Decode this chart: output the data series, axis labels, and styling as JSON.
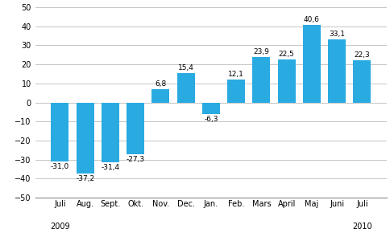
{
  "categories": [
    "Juli",
    "Aug.",
    "Sept.",
    "Okt.",
    "Nov.",
    "Dec.",
    "Jan.",
    "Feb.",
    "Mars",
    "April",
    "Maj",
    "Juni",
    "Juli"
  ],
  "values": [
    -31.0,
    -37.2,
    -31.4,
    -27.3,
    6.8,
    15.4,
    -6.3,
    12.1,
    23.9,
    22.5,
    40.6,
    33.1,
    22.3
  ],
  "bar_color": "#29ABE2",
  "ylim": [
    -50,
    50
  ],
  "yticks": [
    -50,
    -40,
    -30,
    -20,
    -10,
    0,
    10,
    20,
    30,
    40,
    50
  ],
  "grid_color": "#bbbbbb",
  "background_color": "#ffffff",
  "value_labels": [
    "-31,0",
    "-37,2",
    "-31,4",
    "-27,3",
    "6,8",
    "15,4",
    "-6,3",
    "12,1",
    "23,9",
    "22,5",
    "40,6",
    "33,1",
    "22,3"
  ],
  "label_fontsize": 6.5,
  "tick_fontsize": 7,
  "year_fontsize": 7,
  "year_2009_idx": 0,
  "year_2010_idx": 12
}
